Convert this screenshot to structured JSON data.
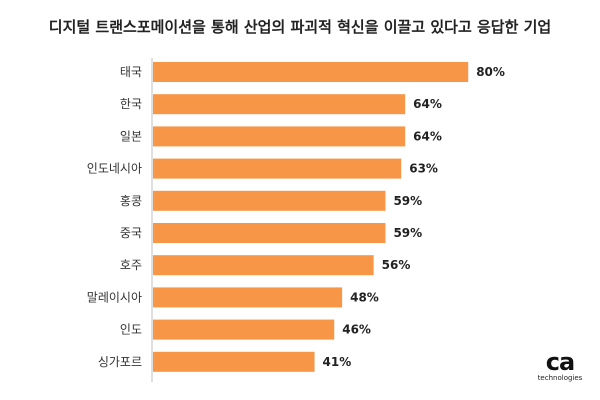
{
  "chart_data": {
    "type": "bar",
    "orientation": "horizontal",
    "title": "디지털 트랜스포메이션을 통해 산업의 파괴적 혁신을 이끌고 있다고 응답한 기업",
    "categories": [
      "태국",
      "한국",
      "일본",
      "인도네시아",
      "홍콩",
      "중국",
      "호주",
      "말레이시아",
      "인도",
      "싱가포르"
    ],
    "values": [
      80,
      64,
      64,
      63,
      59,
      59,
      56,
      48,
      46,
      41
    ],
    "value_labels": [
      "80%",
      "64%",
      "64%",
      "63%",
      "59%",
      "59%",
      "56%",
      "48%",
      "46%",
      "41%"
    ],
    "xlim": [
      0,
      100
    ],
    "grid": false,
    "bar_color": "#F79646"
  },
  "logo": {
    "mark": "ca",
    "sub": "technologies"
  }
}
